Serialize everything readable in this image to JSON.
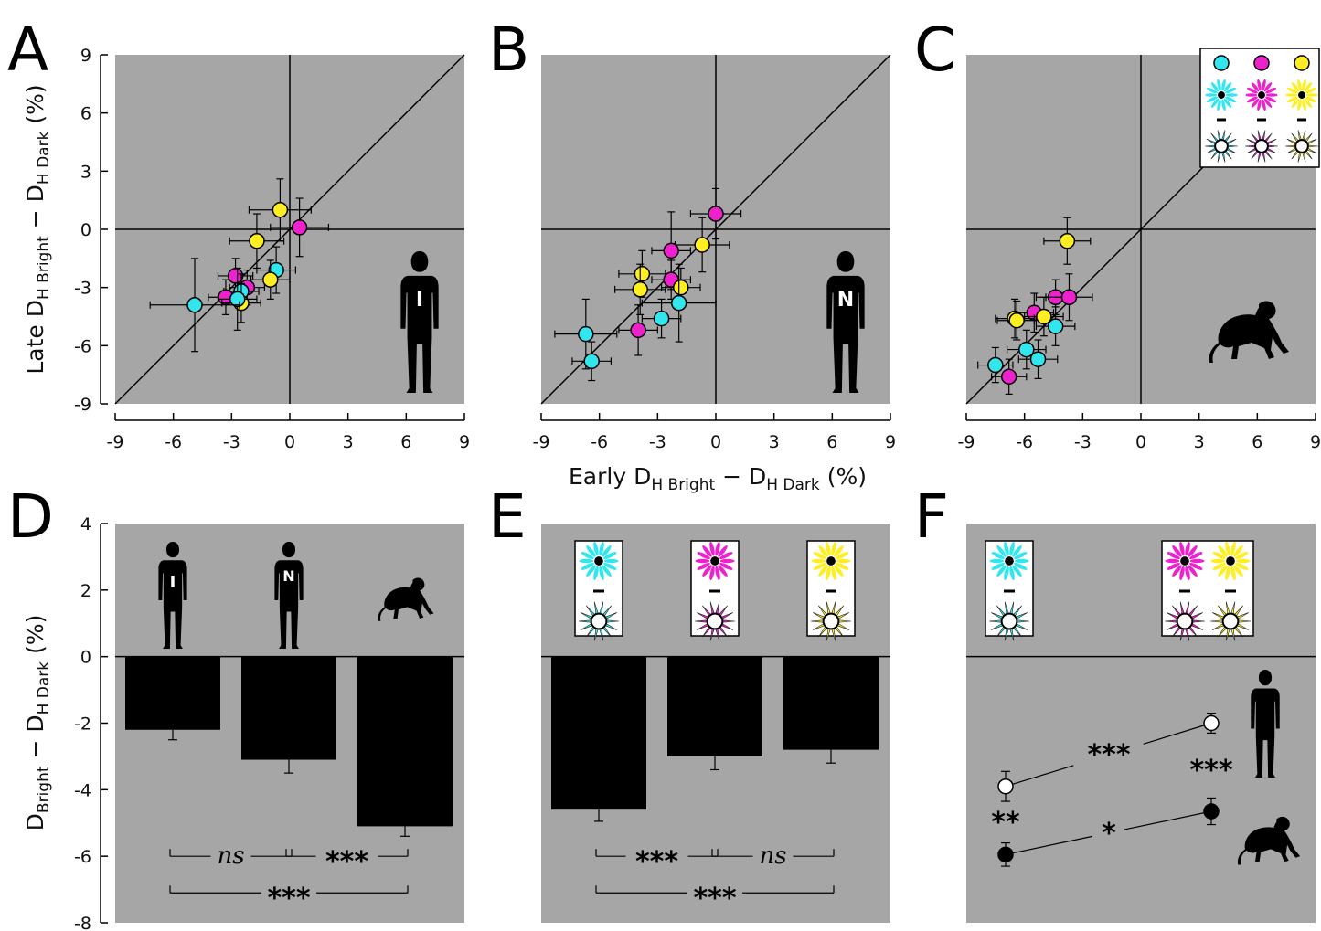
{
  "panel_labels": [
    "A",
    "B",
    "C",
    "D",
    "E",
    "F"
  ],
  "colors": {
    "cyan": "#33e6ee",
    "magenta": "#ee22cc",
    "yellow": "#ffee22",
    "plot_bg": "#a6a6a6"
  },
  "icons": {
    "human_I_letter": "I",
    "human_N_letter": "N",
    "human": "human-silhouette-icon",
    "monkey": "monkey-silhouette-icon",
    "flower": "colored-flower-stimulus-icon"
  },
  "axes": {
    "scatter_ylabel_main": "Late D",
    "scatter_ylabel_sub1": "H Bright",
    "scatter_ylabel_mid": " − D",
    "scatter_ylabel_sub2": "H Dark",
    "scatter_ylabel_unit": "  (%)",
    "scatter_xlabel_main": "Early D",
    "scatter_xlabel_sub1": "H Bright",
    "scatter_xlabel_mid": " − D",
    "scatter_xlabel_sub2": "H Dark",
    "scatter_xlabel_unit": "  (%)",
    "bar_ylabel_main": "D",
    "bar_ylabel_sub1": "Bright",
    "bar_ylabel_mid": " − D",
    "bar_ylabel_sub2": "H Dark",
    "bar_ylabel_unit": "  (%)"
  },
  "chart_data": [
    {
      "panel": "A",
      "type": "scatter",
      "xlim": [
        -9,
        9
      ],
      "ylim": [
        -9,
        9
      ],
      "xticks": [
        "-9",
        "-6",
        "-3",
        "0",
        "3",
        "6",
        "9"
      ],
      "yticks": [
        "9",
        "6",
        "3",
        "0",
        "-3",
        "-6",
        "-9"
      ],
      "identity_line": true,
      "points": [
        {
          "x": -0.5,
          "y": 1.0,
          "color": "yellow",
          "xerr": 1.6,
          "yerr": 1.6
        },
        {
          "x": 0.5,
          "y": 0.1,
          "color": "magenta",
          "xerr": 1.5,
          "yerr": 1.5
        },
        {
          "x": -1.7,
          "y": -0.6,
          "color": "yellow",
          "xerr": 1.4,
          "yerr": 1.4
        },
        {
          "x": -0.7,
          "y": -2.1,
          "color": "cyan",
          "xerr": 1.0,
          "yerr": 1.2
        },
        {
          "x": -1.0,
          "y": -2.6,
          "color": "yellow",
          "xerr": 1.0,
          "yerr": 1.0
        },
        {
          "x": -2.8,
          "y": -2.4,
          "color": "magenta",
          "xerr": 0.9,
          "yerr": 0.9
        },
        {
          "x": -2.2,
          "y": -3.0,
          "color": "magenta",
          "xerr": 0.9,
          "yerr": 0.9
        },
        {
          "x": -2.5,
          "y": -3.2,
          "color": "cyan",
          "xerr": 0.9,
          "yerr": 0.9
        },
        {
          "x": -3.3,
          "y": -3.5,
          "color": "magenta",
          "xerr": 0.9,
          "yerr": 0.9
        },
        {
          "x": -2.5,
          "y": -3.8,
          "color": "yellow",
          "xerr": 1.0,
          "yerr": 1.0
        },
        {
          "x": -2.7,
          "y": -3.6,
          "color": "cyan",
          "xerr": 1.0,
          "yerr": 1.6
        },
        {
          "x": -4.9,
          "y": -3.9,
          "color": "cyan",
          "xerr": 2.3,
          "yerr": 2.4
        }
      ]
    },
    {
      "panel": "B",
      "type": "scatter",
      "xlim": [
        -9,
        9
      ],
      "ylim": [
        -9,
        9
      ],
      "xticks": [
        "-9",
        "-6",
        "-3",
        "0",
        "3",
        "6",
        "9"
      ],
      "identity_line": true,
      "points": [
        {
          "x": 0.0,
          "y": 0.8,
          "color": "magenta",
          "xerr": 1.3,
          "yerr": 1.3
        },
        {
          "x": -0.7,
          "y": -0.8,
          "color": "yellow",
          "xerr": 1.4,
          "yerr": 1.4
        },
        {
          "x": -2.3,
          "y": -1.1,
          "color": "magenta",
          "xerr": 1.0,
          "yerr": 2.0
        },
        {
          "x": -3.8,
          "y": -2.3,
          "color": "yellow",
          "xerr": 1.2,
          "yerr": 1.2
        },
        {
          "x": -2.3,
          "y": -2.6,
          "color": "magenta",
          "xerr": 1.0,
          "yerr": 1.0
        },
        {
          "x": -3.9,
          "y": -3.1,
          "color": "yellow",
          "xerr": 1.3,
          "yerr": 1.3
        },
        {
          "x": -1.8,
          "y": -3.0,
          "color": "yellow",
          "xerr": 1.0,
          "yerr": 1.0
        },
        {
          "x": -1.9,
          "y": -3.8,
          "color": "cyan",
          "xerr": 1.9,
          "yerr": 2.0
        },
        {
          "x": -2.8,
          "y": -4.6,
          "color": "cyan",
          "xerr": 1.0,
          "yerr": 1.0
        },
        {
          "x": -4.0,
          "y": -5.2,
          "color": "magenta",
          "xerr": 1.0,
          "yerr": 1.3
        },
        {
          "x": -6.7,
          "y": -5.4,
          "color": "cyan",
          "xerr": 1.6,
          "yerr": 1.8
        },
        {
          "x": -6.4,
          "y": -6.8,
          "color": "cyan",
          "xerr": 1.0,
          "yerr": 1.0
        }
      ]
    },
    {
      "panel": "C",
      "type": "scatter",
      "xlim": [
        -9,
        9
      ],
      "ylim": [
        -9,
        9
      ],
      "xticks": [
        "-9",
        "-6",
        "-3",
        "0",
        "3",
        "6",
        "9"
      ],
      "identity_line": true,
      "legend": "top-right",
      "points": [
        {
          "x": -3.8,
          "y": -0.6,
          "color": "yellow",
          "xerr": 1.2,
          "yerr": 1.2
        },
        {
          "x": -4.4,
          "y": -3.5,
          "color": "magenta",
          "xerr": 1.0,
          "yerr": 0.9
        },
        {
          "x": -3.7,
          "y": -3.5,
          "color": "magenta",
          "xerr": 1.2,
          "yerr": 1.2
        },
        {
          "x": -5.5,
          "y": -4.3,
          "color": "magenta",
          "xerr": 1.0,
          "yerr": 1.0
        },
        {
          "x": -5.0,
          "y": -4.5,
          "color": "yellow",
          "xerr": 1.0,
          "yerr": 1.0
        },
        {
          "x": -6.5,
          "y": -4.6,
          "color": "yellow",
          "xerr": 1.0,
          "yerr": 1.0
        },
        {
          "x": -6.4,
          "y": -4.7,
          "color": "yellow",
          "xerr": 1.0,
          "yerr": 1.0
        },
        {
          "x": -4.4,
          "y": -5.0,
          "color": "cyan",
          "xerr": 1.0,
          "yerr": 1.0
        },
        {
          "x": -5.9,
          "y": -6.2,
          "color": "cyan",
          "xerr": 1.0,
          "yerr": 1.0
        },
        {
          "x": -5.3,
          "y": -6.7,
          "color": "cyan",
          "xerr": 1.0,
          "yerr": 1.0
        },
        {
          "x": -7.5,
          "y": -7.0,
          "color": "cyan",
          "xerr": 0.9,
          "yerr": 0.9
        },
        {
          "x": -6.8,
          "y": -7.6,
          "color": "magenta",
          "xerr": 0.9,
          "yerr": 0.9
        }
      ]
    },
    {
      "panel": "D",
      "type": "bar",
      "ylim": [
        -8,
        4
      ],
      "yticks": [
        "4",
        "2",
        "0",
        "-2",
        "-4",
        "-6",
        "-8"
      ],
      "categories": [
        "human I",
        "human N",
        "monkey"
      ],
      "values": [
        -2.2,
        -3.1,
        -5.1
      ],
      "errors": [
        0.3,
        0.4,
        0.3
      ],
      "comparisons": [
        {
          "from": 0,
          "to": 1,
          "y": -6.0,
          "label": "ns"
        },
        {
          "from": 1,
          "to": 2,
          "y": -6.0,
          "label": "***"
        },
        {
          "from": 0,
          "to": 2,
          "y": -7.1,
          "label": "***"
        }
      ]
    },
    {
      "panel": "E",
      "type": "bar",
      "ylim": [
        -8,
        4
      ],
      "categories": [
        "cyan",
        "magenta",
        "yellow"
      ],
      "values": [
        -4.6,
        -3.0,
        -2.8
      ],
      "errors": [
        0.35,
        0.4,
        0.4
      ],
      "comparisons": [
        {
          "from": 0,
          "to": 1,
          "y": -6.0,
          "label": "***"
        },
        {
          "from": 1,
          "to": 2,
          "y": -6.0,
          "label": "ns"
        },
        {
          "from": 0,
          "to": 2,
          "y": -7.1,
          "label": "***"
        }
      ]
    },
    {
      "panel": "F",
      "type": "line",
      "ylim": [
        -8,
        4
      ],
      "categories": [
        "cyan",
        "magenta + yellow"
      ],
      "series": [
        {
          "values": [
            -3.9,
            -2.0
          ],
          "marker": "open",
          "errors": [
            0.45,
            0.3
          ]
        },
        {
          "values": [
            -5.95,
            -4.65
          ],
          "marker": "filled",
          "errors": [
            0.35,
            0.4
          ]
        }
      ],
      "annotations": [
        {
          "text": "***",
          "pos": "between-open"
        },
        {
          "text": "*",
          "pos": "between-filled"
        },
        {
          "text": "***",
          "pos": "right-between-series"
        },
        {
          "text": "**",
          "pos": "left-between-series"
        }
      ]
    }
  ]
}
